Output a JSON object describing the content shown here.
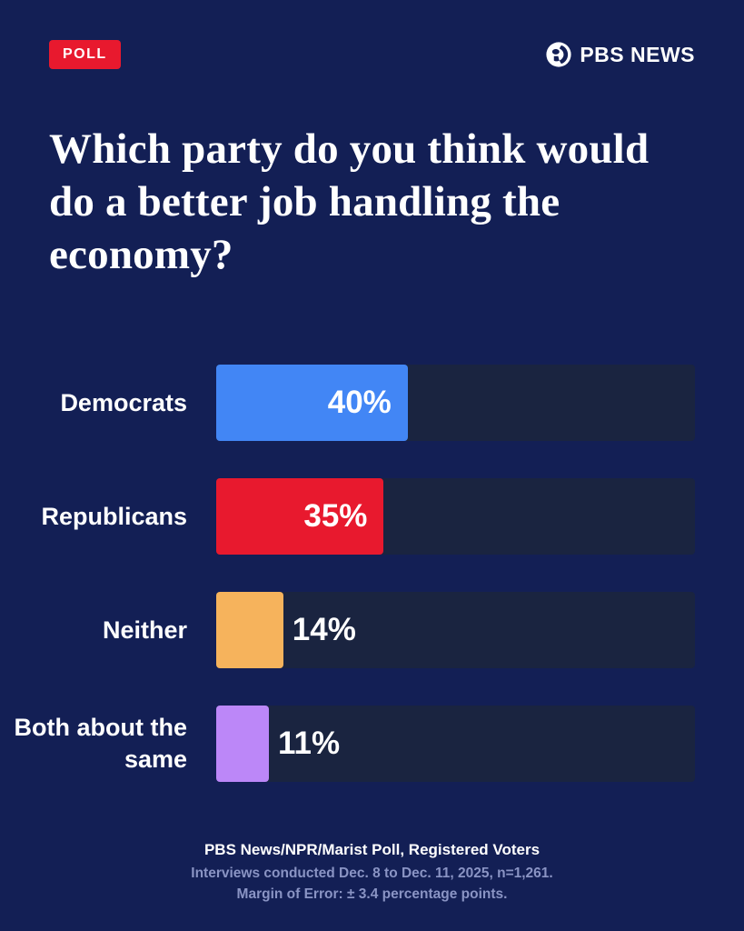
{
  "header": {
    "badge": "POLL",
    "brand": "PBS NEWS",
    "logo_icon": "pbs-circle-logo"
  },
  "title": "Which party do you think would do a better job handling the economy?",
  "chart_data": {
    "type": "bar",
    "orientation": "horizontal",
    "title": "Which party do you think would do a better job handling the economy?",
    "categories": [
      "Democrats",
      "Republicans",
      "Neither",
      "Both about the same"
    ],
    "values": [
      40,
      35,
      14,
      11
    ],
    "value_labels": [
      "40%",
      "35%",
      "14%",
      "11%"
    ],
    "colors": [
      "#4286f5",
      "#e8192e",
      "#f6b35c",
      "#bc87f8"
    ],
    "track_color": "#1a2440",
    "xlim": [
      0,
      100
    ],
    "grid": false,
    "legend": "none"
  },
  "footer": {
    "line1": "PBS News/NPR/Marist Poll, Registered Voters",
    "line2": "Interviews conducted Dec. 8 to Dec. 11, 2025, n=1,261.",
    "line3": "Margin of Error: ± 3.4 percentage points."
  }
}
